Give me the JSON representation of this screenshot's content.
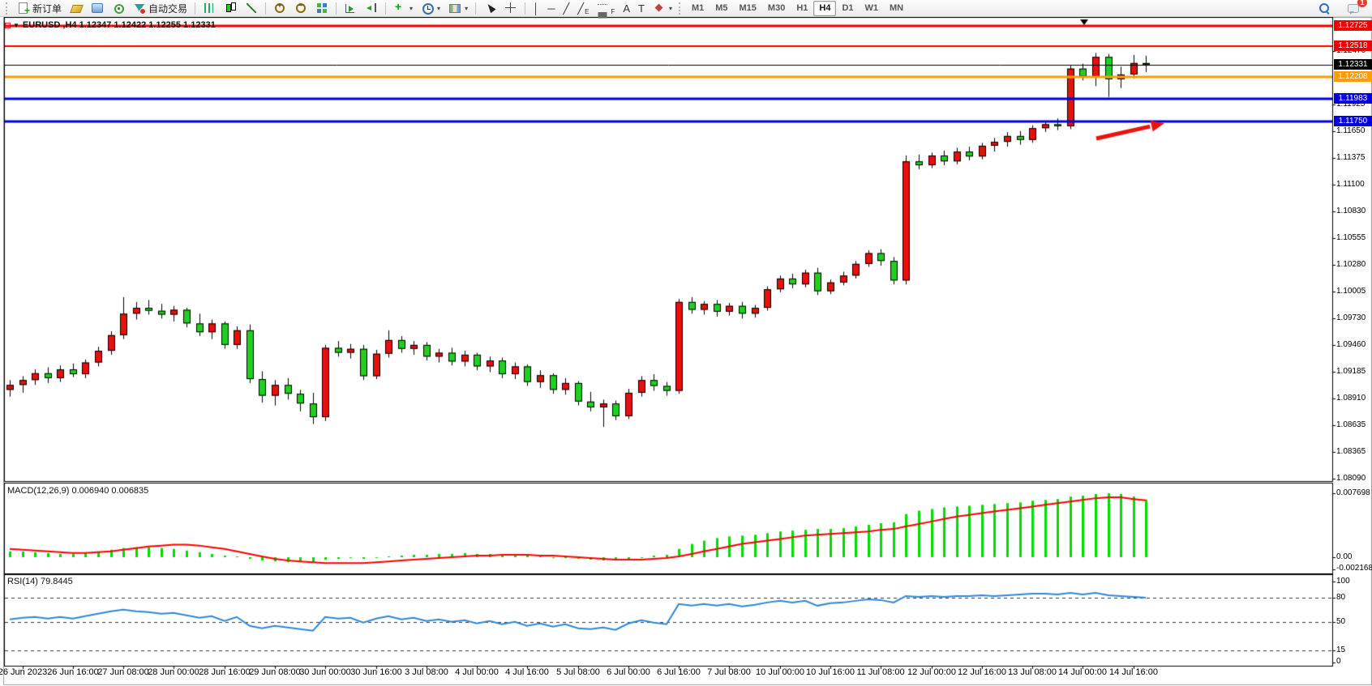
{
  "toolbar": {
    "items": [
      {
        "name": "new-order-button",
        "icon": "new-order",
        "text": "新订单"
      },
      {
        "name": "profile-button",
        "icon": "profile"
      },
      {
        "name": "market-watch-button",
        "icon": "market-watch"
      },
      {
        "name": "navigator-button",
        "icon": "navigator"
      },
      {
        "name": "auto-trading-button",
        "icon": "auto-trading",
        "text": "自动交易"
      },
      {
        "sep": true
      },
      {
        "name": "bar-chart-button",
        "icon": "bar-chart"
      },
      {
        "name": "candle-chart-button",
        "icon": "candle-chart"
      },
      {
        "name": "line-chart-button",
        "icon": "line-chart"
      },
      {
        "sep": true
      },
      {
        "name": "zoom-in-button",
        "icon": "zoom-in"
      },
      {
        "name": "zoom-out-button",
        "icon": "zoom-out"
      },
      {
        "name": "tile-windows-button",
        "icon": "tile-windows"
      },
      {
        "sep": true
      },
      {
        "name": "auto-scroll-button",
        "icon": "auto-scroll"
      },
      {
        "name": "chart-shift-button",
        "icon": "chart-shift"
      },
      {
        "sep": true
      },
      {
        "name": "indicators-button",
        "icon": "indicators",
        "caret": true
      },
      {
        "name": "periods-button",
        "icon": "periods",
        "caret": true
      },
      {
        "name": "templates-button",
        "icon": "templates",
        "caret": true
      },
      {
        "sep": true
      },
      {
        "name": "cursor-button",
        "icon": "cursor"
      },
      {
        "name": "crosshair-button",
        "icon": "crosshair"
      },
      {
        "sep": true
      },
      {
        "name": "vertical-line-button",
        "glyph": "│"
      },
      {
        "name": "horizontal-line-button",
        "glyph": "─"
      },
      {
        "name": "trendline-button",
        "glyph": "╱"
      },
      {
        "name": "channel-button",
        "glyph": "╱",
        "sub": "E"
      },
      {
        "name": "fibonacci-button",
        "icon": "fibonacci",
        "sub": "F"
      },
      {
        "name": "text-button",
        "glyph": "A"
      },
      {
        "name": "text-label-button",
        "glyph": "T"
      },
      {
        "name": "arrows-button",
        "icon": "arrows",
        "caret": true
      }
    ],
    "timeframes": [
      "M1",
      "M5",
      "M15",
      "M30",
      "H1",
      "H4",
      "D1",
      "W1",
      "MN"
    ],
    "active_timeframe": "H4",
    "notification_count": "1"
  },
  "chart": {
    "symbol_title": "EURUSD ,H4   1.12347 1.12422 1.12255 1.12331",
    "macd_label": "MACD(12,26,9) 0.006940 0.006835",
    "rsi_label": "RSI(14) 79.8445"
  },
  "price_axis": {
    "main_ticks": [
      "1.12470",
      "1.11925",
      "1.11650",
      "1.11375",
      "1.11100",
      "1.10830",
      "1.10555",
      "1.10280",
      "1.10005",
      "1.09730",
      "1.09460",
      "1.09185",
      "1.08910",
      "1.08635",
      "1.08365",
      "1.08090"
    ],
    "macd_ticks": [
      "0.007698",
      "0.00",
      "-0.002168"
    ],
    "rsi_ticks": [
      "100",
      "80",
      "50",
      "15",
      "0"
    ]
  },
  "price_lines": [
    {
      "label": "1.12725",
      "price": 1.12725,
      "color": "#ee0000",
      "width": 3
    },
    {
      "label": "1.12518",
      "price": 1.12518,
      "color": "#ee0000",
      "width": 2
    },
    {
      "label": "1.12331",
      "price": 1.12331,
      "color": "#000000",
      "width": 1,
      "current": true
    },
    {
      "label": "1.12208",
      "price": 1.12208,
      "color": "#ff9c00",
      "width": 3
    },
    {
      "label": "1.11983",
      "price": 1.11983,
      "color": "#0000dd",
      "width": 3
    },
    {
      "label": "1.11750",
      "price": 1.1175,
      "color": "#0000dd",
      "width": 3
    }
  ],
  "chart_data": {
    "type": "candlestick",
    "symbol": "EURUSD",
    "timeframe": "H4",
    "current_ohlc": {
      "open": "1.12347",
      "high": "1.12422",
      "low": "1.12255",
      "close": "1.12331"
    },
    "bull_color": "#e8100c",
    "bear_color": "#1ed11e",
    "y_axis_range": [
      1.08065,
      1.128
    ],
    "x_labels": [
      "26 Jun 2023",
      "26 Jun 16:00",
      "27 Jun 08:00",
      "28 Jun 00:00",
      "28 Jun 16:00",
      "29 Jun 08:00",
      "30 Jun 00:00",
      "30 Jun 16:00",
      "3 Jul 08:00",
      "4 Jul 00:00",
      "4 Jul 16:00",
      "5 Jul 08:00",
      "6 Jul 00:00",
      "6 Jul 16:00",
      "7 Jul 08:00",
      "10 Jul 00:00",
      "10 Jul 16:00",
      "11 Jul 08:00",
      "12 Jul 00:00",
      "12 Jul 16:00",
      "13 Jul 08:00",
      "14 Jul 00:00",
      "14 Jul 16:00"
    ],
    "label_every_bars": 4,
    "first_labeled_bar": 1,
    "ohlc": [
      [
        1.09,
        1.091,
        1.0893,
        1.0905
      ],
      [
        1.0905,
        1.0914,
        1.0897,
        1.091
      ],
      [
        1.091,
        1.0921,
        1.0905,
        1.0917
      ],
      [
        1.0917,
        1.0923,
        1.0907,
        1.0912
      ],
      [
        1.0912,
        1.0925,
        1.0908,
        1.0921
      ],
      [
        1.0921,
        1.0927,
        1.0913,
        1.0916
      ],
      [
        1.0916,
        1.0931,
        1.0912,
        1.0928
      ],
      [
        1.0928,
        1.0944,
        1.0924,
        1.094
      ],
      [
        1.094,
        1.096,
        1.0936,
        1.0956
      ],
      [
        1.0956,
        1.0995,
        1.0952,
        1.0978
      ],
      [
        1.0978,
        1.099,
        1.0972,
        1.0984
      ],
      [
        1.0984,
        1.0992,
        1.0977,
        1.0981
      ],
      [
        1.0981,
        1.0988,
        1.0973,
        1.0977
      ],
      [
        1.0977,
        1.0986,
        1.097,
        1.0982
      ],
      [
        1.0982,
        1.0984,
        1.0964,
        1.0968
      ],
      [
        1.0968,
        1.0978,
        1.0955,
        1.0959
      ],
      [
        1.0959,
        1.0972,
        1.0952,
        1.0968
      ],
      [
        1.0968,
        1.097,
        1.0942,
        1.0946
      ],
      [
        1.0946,
        1.0965,
        1.0942,
        1.0961
      ],
      [
        1.0961,
        1.0967,
        1.0907,
        1.0911
      ],
      [
        1.0911,
        1.0919,
        1.0887,
        1.0894
      ],
      [
        1.0894,
        1.091,
        1.0884,
        1.0905
      ],
      [
        1.0905,
        1.0912,
        1.089,
        1.0896
      ],
      [
        1.0896,
        1.09,
        1.0878,
        1.0886
      ],
      [
        1.0886,
        1.0897,
        1.0865,
        1.0872
      ],
      [
        1.0872,
        1.0946,
        1.0868,
        1.0943
      ],
      [
        1.0943,
        1.095,
        1.0934,
        1.0938
      ],
      [
        1.0938,
        1.0947,
        1.0932,
        1.0942
      ],
      [
        1.0942,
        1.0946,
        1.091,
        1.0914
      ],
      [
        1.0914,
        1.0941,
        1.0911,
        1.0937
      ],
      [
        1.0937,
        1.0961,
        1.0933,
        1.0951
      ],
      [
        1.0951,
        1.0955,
        1.0938,
        1.0942
      ],
      [
        1.0942,
        1.095,
        1.0936,
        1.0946
      ],
      [
        1.0946,
        1.0949,
        1.093,
        1.0934
      ],
      [
        1.0934,
        1.0942,
        1.0928,
        1.0938
      ],
      [
        1.0938,
        1.0943,
        1.0925,
        1.0929
      ],
      [
        1.0929,
        1.094,
        1.0924,
        1.0936
      ],
      [
        1.0936,
        1.0938,
        1.092,
        1.0924
      ],
      [
        1.0924,
        1.0934,
        1.0918,
        1.093
      ],
      [
        1.093,
        1.0933,
        1.0912,
        1.0916
      ],
      [
        1.0916,
        1.0928,
        1.0911,
        1.0924
      ],
      [
        1.0924,
        1.0926,
        1.0904,
        1.0908
      ],
      [
        1.0908,
        1.092,
        1.0902,
        1.0915
      ],
      [
        1.0915,
        1.0917,
        1.0896,
        1.09
      ],
      [
        1.09,
        1.0912,
        1.0895,
        1.0907
      ],
      [
        1.0907,
        1.0909,
        1.0884,
        1.0888
      ],
      [
        1.0888,
        1.0898,
        1.0878,
        1.0882
      ],
      [
        1.0882,
        1.089,
        1.0862,
        1.0886
      ],
      [
        1.0886,
        1.0889,
        1.0869,
        1.0873
      ],
      [
        1.0873,
        1.0901,
        1.087,
        1.0897
      ],
      [
        1.0897,
        1.0914,
        1.0893,
        1.091
      ],
      [
        1.091,
        1.0916,
        1.0899,
        1.0904
      ],
      [
        1.0904,
        1.0908,
        1.0894,
        1.0899
      ],
      [
        1.0899,
        1.0993,
        1.0896,
        1.099
      ],
      [
        1.099,
        1.0995,
        1.0978,
        1.0982
      ],
      [
        1.0982,
        1.0991,
        1.0977,
        1.0988
      ],
      [
        1.0988,
        1.0992,
        1.0975,
        1.098
      ],
      [
        1.098,
        1.0989,
        1.0976,
        1.0986
      ],
      [
        1.0986,
        1.099,
        1.0973,
        1.0978
      ],
      [
        1.0978,
        1.0987,
        1.0974,
        1.0984
      ],
      [
        1.0984,
        1.1006,
        1.0981,
        1.1003
      ],
      [
        1.1003,
        1.1017,
        1.1,
        1.1014
      ],
      [
        1.1014,
        1.1019,
        1.1004,
        1.1008
      ],
      [
        1.1008,
        1.1023,
        1.1005,
        1.102
      ],
      [
        1.102,
        1.1025,
        1.0997,
        1.1001
      ],
      [
        1.1001,
        1.1013,
        1.0998,
        1.101
      ],
      [
        1.101,
        1.1021,
        1.1007,
        1.1017
      ],
      [
        1.1017,
        1.1032,
        1.1014,
        1.1029
      ],
      [
        1.1029,
        1.1043,
        1.1026,
        1.104
      ],
      [
        1.104,
        1.1044,
        1.1027,
        1.1032
      ],
      [
        1.1032,
        1.1036,
        1.1008,
        1.1012
      ],
      [
        1.1012,
        1.114,
        1.1008,
        1.1134
      ],
      [
        1.1134,
        1.1141,
        1.1126,
        1.113
      ],
      [
        1.113,
        1.1143,
        1.1127,
        1.114
      ],
      [
        1.114,
        1.1145,
        1.113,
        1.1134
      ],
      [
        1.1134,
        1.1148,
        1.1131,
        1.1144
      ],
      [
        1.1144,
        1.1149,
        1.1135,
        1.1139
      ],
      [
        1.1139,
        1.1153,
        1.1136,
        1.115
      ],
      [
        1.115,
        1.1158,
        1.1144,
        1.1154
      ],
      [
        1.1154,
        1.1164,
        1.1149,
        1.116
      ],
      [
        1.116,
        1.1165,
        1.1151,
        1.1156
      ],
      [
        1.1156,
        1.1171,
        1.1153,
        1.1168
      ],
      [
        1.1168,
        1.1175,
        1.1164,
        1.1172
      ],
      [
        1.1172,
        1.1178,
        1.1166,
        1.117
      ],
      [
        1.117,
        1.1232,
        1.1167,
        1.1229
      ],
      [
        1.1229,
        1.1234,
        1.1217,
        1.1221
      ],
      [
        1.1221,
        1.1245,
        1.1211,
        1.1241
      ],
      [
        1.1241,
        1.1244,
        1.12,
        1.1218
      ],
      [
        1.1218,
        1.1231,
        1.1209,
        1.1223
      ],
      [
        1.1223,
        1.1243,
        1.1219,
        1.12347
      ],
      [
        1.12347,
        1.12422,
        1.12255,
        1.12331
      ]
    ],
    "macd": {
      "params": "12,26,9",
      "main_value": "0.006940",
      "signal_value": "0.006835",
      "hist_color": "#00dd00",
      "signal_color": "#ff0000",
      "axis_max": 0.007698,
      "axis_min": -0.002168,
      "histogram": [
        0.0007,
        0.0007,
        0.0006,
        0.0005,
        0.0004,
        0.0004,
        0.0005,
        0.0007,
        0.0009,
        0.0011,
        0.0012,
        0.0012,
        0.0011,
        0.001,
        0.0008,
        0.0006,
        0.0004,
        0.0002,
        0.0001,
        -0.0002,
        -0.0004,
        -0.0005,
        -0.0006,
        -0.0006,
        -0.0007,
        -0.0003,
        -0.0002,
        -0.0001,
        -0.0002,
        -0.0001,
        0.0001,
        0.0002,
        0.0003,
        0.0003,
        0.0004,
        0.0004,
        0.0005,
        0.0004,
        0.0004,
        0.0003,
        0.0003,
        0.0002,
        0.0001,
        0.0,
        -0.0001,
        -0.0002,
        -0.0003,
        -0.0004,
        -0.0004,
        -0.0002,
        0.0,
        0.0002,
        0.0003,
        0.001,
        0.0016,
        0.002,
        0.0023,
        0.0025,
        0.0026,
        0.0027,
        0.0029,
        0.0031,
        0.0032,
        0.0033,
        0.0034,
        0.0034,
        0.0035,
        0.0037,
        0.0039,
        0.0041,
        0.0042,
        0.0052,
        0.0056,
        0.0058,
        0.006,
        0.0061,
        0.0062,
        0.0063,
        0.0064,
        0.0065,
        0.0066,
        0.0068,
        0.0069,
        0.007,
        0.0073,
        0.0074,
        0.0076,
        0.0077,
        0.0076,
        0.0073,
        0.00694
      ],
      "signal": [
        0.001,
        0.0009,
        0.0008,
        0.0007,
        0.0006,
        0.0005,
        0.0005,
        0.0006,
        0.0007,
        0.0009,
        0.0011,
        0.0013,
        0.0014,
        0.0015,
        0.0015,
        0.0014,
        0.0012,
        0.001,
        0.0007,
        0.0004,
        0.0001,
        -0.0002,
        -0.0004,
        -0.0005,
        -0.0006,
        -0.0007,
        -0.0007,
        -0.0007,
        -0.0007,
        -0.0006,
        -0.0005,
        -0.0004,
        -0.0003,
        -0.0002,
        -0.0001,
        0.0,
        0.0001,
        0.0002,
        0.0002,
        0.0003,
        0.0003,
        0.0003,
        0.0002,
        0.0002,
        0.0001,
        0.0,
        -0.0001,
        -0.0002,
        -0.0003,
        -0.0003,
        -0.0003,
        -0.0002,
        -0.0001,
        0.0001,
        0.0004,
        0.0007,
        0.001,
        0.0013,
        0.0016,
        0.0018,
        0.002,
        0.0022,
        0.0024,
        0.0026,
        0.0027,
        0.0028,
        0.0029,
        0.003,
        0.0031,
        0.0033,
        0.0034,
        0.0037,
        0.004,
        0.0043,
        0.0046,
        0.0049,
        0.0051,
        0.0053,
        0.0055,
        0.0057,
        0.0059,
        0.0061,
        0.0063,
        0.0065,
        0.0067,
        0.0069,
        0.0071,
        0.0072,
        0.0072,
        0.007,
        0.006835
      ]
    },
    "rsi": {
      "period": "14",
      "value": "79.8445",
      "color": "#2f87d8",
      "levels": [
        80,
        50,
        15
      ],
      "range": [
        0,
        100
      ],
      "values": [
        53,
        55,
        56,
        54,
        56,
        54,
        57,
        60,
        63,
        65,
        63,
        62,
        60,
        61,
        58,
        55,
        57,
        51,
        56,
        45,
        42,
        45,
        43,
        41,
        39,
        56,
        54,
        55,
        49,
        54,
        57,
        53,
        55,
        51,
        53,
        50,
        52,
        48,
        51,
        47,
        50,
        45,
        48,
        44,
        47,
        42,
        41,
        43,
        40,
        48,
        52,
        49,
        47,
        72,
        70,
        72,
        70,
        72,
        69,
        71,
        74,
        76,
        74,
        76,
        70,
        73,
        74,
        76,
        78,
        77,
        74,
        82,
        81,
        82,
        81,
        82,
        82,
        83,
        82,
        83,
        84,
        85,
        85,
        84,
        86,
        84,
        86,
        83,
        82,
        81,
        79.84
      ]
    },
    "annotations": [
      {
        "type": "arrow",
        "color": "#e8140c",
        "from_xy": [
          1352,
          171
        ],
        "to_xy": [
          1428,
          154
        ],
        "points_at": "1.11750 line"
      }
    ]
  }
}
